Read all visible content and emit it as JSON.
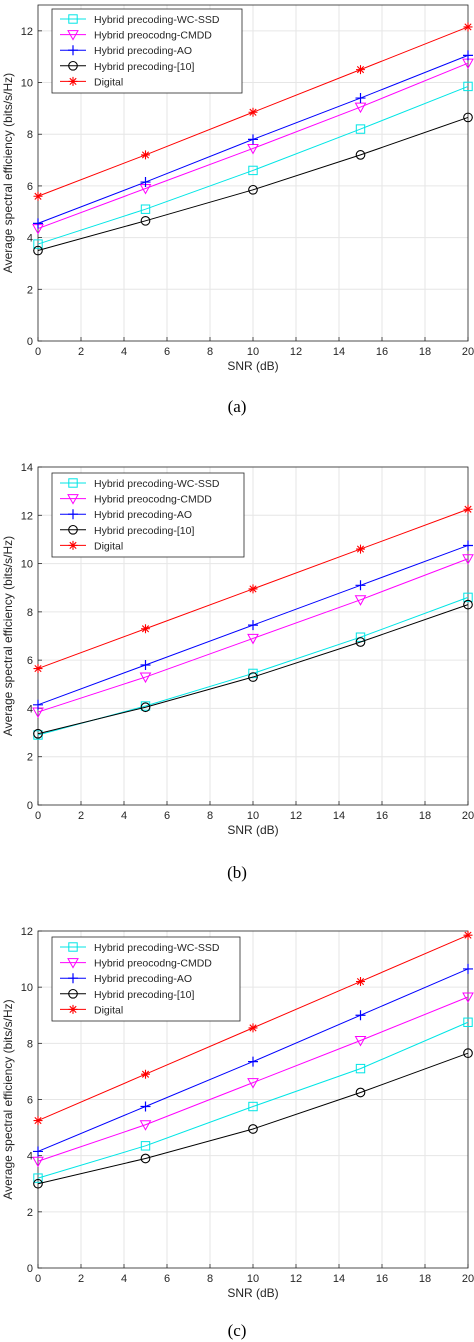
{
  "colors": {
    "Hybrid precoding-WC-SSD": "#00e5e5",
    "Hybrid preocodng-CMDD": "#ff00ff",
    "Hybrid precoding-AO": "#0000ff",
    "Hybrid precoding-[10]": "#000000",
    "Digital": "#ff0000",
    "grid": "#e6e6e6",
    "axis": "#262626"
  },
  "markers": {
    "Hybrid precoding-WC-SSD": "square",
    "Hybrid preocodng-CMDD": "triangle-down",
    "Hybrid precoding-AO": "plus",
    "Hybrid precoding-[10]": "circle",
    "Digital": "asterisk"
  },
  "chart_data": [
    {
      "type": "line",
      "caption": "(a)",
      "xlabel": "SNR (dB)",
      "ylabel": "Average spectral efficiency (bits/s/Hz)",
      "xlim": [
        0,
        20
      ],
      "ylim": [
        0,
        13
      ],
      "xticks": [
        0,
        2,
        4,
        6,
        8,
        10,
        12,
        14,
        16,
        18,
        20
      ],
      "yticks": [
        0,
        2,
        4,
        6,
        8,
        10,
        12
      ],
      "grid": true,
      "legend": "top-left",
      "x": [
        0,
        5,
        10,
        15,
        20
      ],
      "series": [
        {
          "name": "Hybrid precoding-WC-SSD",
          "values": [
            3.75,
            5.1,
            6.6,
            8.2,
            9.85
          ]
        },
        {
          "name": "Hybrid preocodng-CMDD",
          "values": [
            4.35,
            5.9,
            7.45,
            9.05,
            10.75
          ]
        },
        {
          "name": "Hybrid precoding-AO",
          "values": [
            4.55,
            6.15,
            7.8,
            9.4,
            11.05
          ]
        },
        {
          "name": "Hybrid precoding-[10]",
          "values": [
            3.5,
            4.65,
            5.85,
            7.2,
            8.65
          ]
        },
        {
          "name": "Digital",
          "values": [
            5.6,
            7.2,
            8.85,
            10.5,
            12.15
          ]
        }
      ]
    },
    {
      "type": "line",
      "caption": "(b)",
      "xlabel": "SNR (dB)",
      "ylabel": "Average spectral efficiency (bits/s/Hz)",
      "xlim": [
        0,
        20
      ],
      "ylim": [
        0,
        14
      ],
      "xticks": [
        0,
        2,
        4,
        6,
        8,
        10,
        12,
        14,
        16,
        18,
        20
      ],
      "yticks": [
        0,
        2,
        4,
        6,
        8,
        10,
        12,
        14
      ],
      "grid": true,
      "legend": "top-left",
      "x": [
        0,
        5,
        10,
        15,
        20
      ],
      "series": [
        {
          "name": "Hybrid precoding-WC-SSD",
          "values": [
            2.9,
            4.1,
            5.45,
            6.95,
            8.6
          ]
        },
        {
          "name": "Hybrid preocodng-CMDD",
          "values": [
            3.85,
            5.3,
            6.9,
            8.5,
            10.2
          ]
        },
        {
          "name": "Hybrid precoding-AO",
          "values": [
            4.15,
            5.8,
            7.45,
            9.1,
            10.75
          ]
        },
        {
          "name": "Hybrid precoding-[10]",
          "values": [
            2.95,
            4.05,
            5.3,
            6.75,
            8.3
          ]
        },
        {
          "name": "Digital",
          "values": [
            5.65,
            7.3,
            8.95,
            10.6,
            12.25
          ]
        }
      ]
    },
    {
      "type": "line",
      "caption": "(c)",
      "xlabel": "SNR (dB)",
      "ylabel": "Average spectral efficiency (bits/s/Hz)",
      "xlim": [
        0,
        20
      ],
      "ylim": [
        0,
        12
      ],
      "xticks": [
        0,
        2,
        4,
        6,
        8,
        10,
        12,
        14,
        16,
        18,
        20
      ],
      "yticks": [
        0,
        2,
        4,
        6,
        8,
        10,
        12
      ],
      "grid": true,
      "legend": "top-left",
      "x": [
        0,
        5,
        10,
        15,
        20
      ],
      "series": [
        {
          "name": "Hybrid precoding-WC-SSD",
          "values": [
            3.2,
            4.35,
            5.75,
            7.1,
            8.75
          ]
        },
        {
          "name": "Hybrid preocodng-CMDD",
          "values": [
            3.8,
            5.1,
            6.6,
            8.1,
            9.65
          ]
        },
        {
          "name": "Hybrid precoding-AO",
          "values": [
            4.15,
            5.75,
            7.35,
            9.0,
            10.65
          ]
        },
        {
          "name": "Hybrid precoding-[10]",
          "values": [
            3.0,
            3.9,
            4.95,
            6.25,
            7.65
          ]
        },
        {
          "name": "Digital",
          "values": [
            5.25,
            6.9,
            8.55,
            10.2,
            11.85
          ]
        }
      ]
    }
  ]
}
